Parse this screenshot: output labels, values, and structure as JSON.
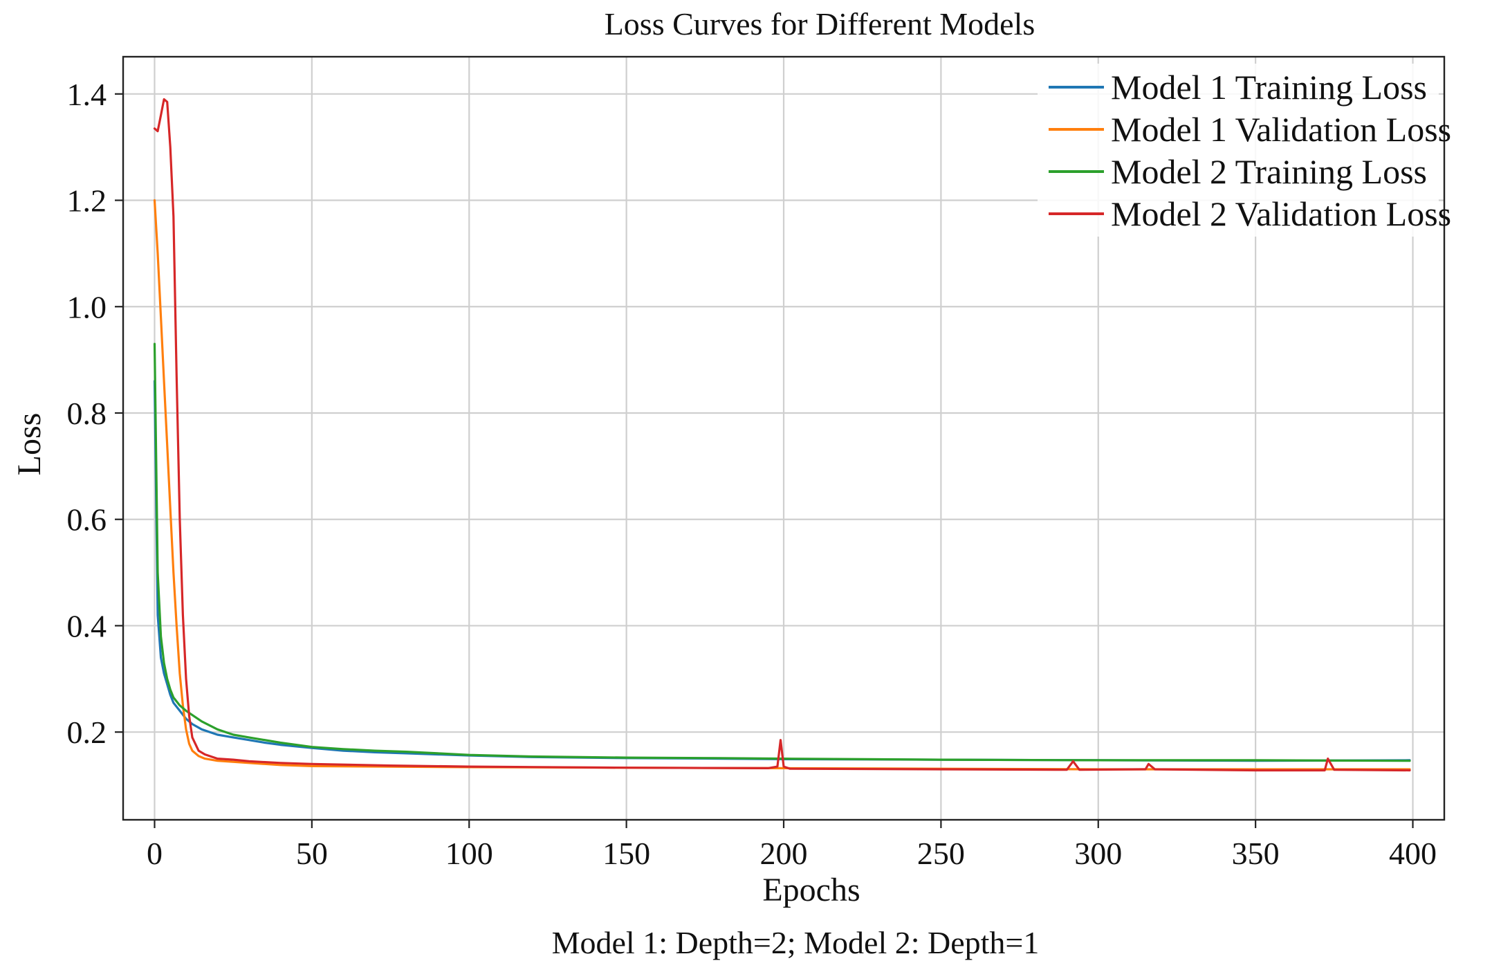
{
  "chart_data": {
    "type": "line",
    "title": "Loss Curves for Different Models",
    "xlabel": "Epochs",
    "ylabel": "Loss",
    "caption": "Model 1: Depth=2; Model 2: Depth=1",
    "xlim": [
      -10,
      410
    ],
    "ylim": [
      0.035,
      1.47
    ],
    "xticks": [
      0,
      50,
      100,
      150,
      200,
      250,
      300,
      350,
      400
    ],
    "yticks": [
      0.2,
      0.4,
      0.6,
      0.8,
      1.0,
      1.2,
      1.4
    ],
    "xtick_labels": [
      "0",
      "50",
      "100",
      "150",
      "200",
      "250",
      "300",
      "350",
      "400"
    ],
    "ytick_labels": [
      "0.2",
      "0.4",
      "0.6",
      "0.8",
      "1.0",
      "1.2",
      "1.4"
    ],
    "grid": true,
    "legend_position": "top-right",
    "series": [
      {
        "name": "Model 1 Training Loss",
        "color": "#1f77b4",
        "points": [
          [
            0,
            0.86
          ],
          [
            1,
            0.42
          ],
          [
            2,
            0.34
          ],
          [
            3,
            0.31
          ],
          [
            4,
            0.29
          ],
          [
            5,
            0.27
          ],
          [
            6,
            0.255
          ],
          [
            8,
            0.24
          ],
          [
            10,
            0.225
          ],
          [
            12,
            0.215
          ],
          [
            15,
            0.205
          ],
          [
            20,
            0.195
          ],
          [
            25,
            0.19
          ],
          [
            30,
            0.185
          ],
          [
            35,
            0.18
          ],
          [
            40,
            0.176
          ],
          [
            50,
            0.17
          ],
          [
            60,
            0.165
          ],
          [
            70,
            0.162
          ],
          [
            80,
            0.16
          ],
          [
            90,
            0.158
          ],
          [
            100,
            0.156
          ],
          [
            120,
            0.153
          ],
          [
            150,
            0.151
          ],
          [
            180,
            0.15
          ],
          [
            200,
            0.149
          ],
          [
            250,
            0.148
          ],
          [
            300,
            0.147
          ],
          [
            350,
            0.146
          ],
          [
            399,
            0.147
          ]
        ]
      },
      {
        "name": "Model 1 Validation Loss",
        "color": "#ff7f0e",
        "points": [
          [
            0,
            1.2
          ],
          [
            1,
            1.1
          ],
          [
            2,
            0.98
          ],
          [
            3,
            0.86
          ],
          [
            4,
            0.74
          ],
          [
            5,
            0.62
          ],
          [
            6,
            0.5
          ],
          [
            7,
            0.4
          ],
          [
            8,
            0.31
          ],
          [
            9,
            0.25
          ],
          [
            10,
            0.205
          ],
          [
            11,
            0.178
          ],
          [
            12,
            0.165
          ],
          [
            14,
            0.155
          ],
          [
            16,
            0.15
          ],
          [
            20,
            0.146
          ],
          [
            30,
            0.142
          ],
          [
            40,
            0.138
          ],
          [
            50,
            0.136
          ],
          [
            75,
            0.135
          ],
          [
            100,
            0.134
          ],
          [
            150,
            0.133
          ],
          [
            200,
            0.132
          ],
          [
            250,
            0.131
          ],
          [
            300,
            0.13
          ],
          [
            350,
            0.13
          ],
          [
            399,
            0.13
          ]
        ]
      },
      {
        "name": "Model 2 Training Loss",
        "color": "#2ca02c",
        "points": [
          [
            0,
            0.93
          ],
          [
            1,
            0.5
          ],
          [
            2,
            0.38
          ],
          [
            3,
            0.33
          ],
          [
            4,
            0.3
          ],
          [
            5,
            0.28
          ],
          [
            6,
            0.265
          ],
          [
            8,
            0.25
          ],
          [
            10,
            0.24
          ],
          [
            12,
            0.232
          ],
          [
            15,
            0.22
          ],
          [
            20,
            0.205
          ],
          [
            25,
            0.195
          ],
          [
            30,
            0.19
          ],
          [
            40,
            0.18
          ],
          [
            50,
            0.172
          ],
          [
            60,
            0.168
          ],
          [
            70,
            0.165
          ],
          [
            80,
            0.163
          ],
          [
            90,
            0.16
          ],
          [
            100,
            0.157
          ],
          [
            120,
            0.154
          ],
          [
            150,
            0.152
          ],
          [
            180,
            0.151
          ],
          [
            200,
            0.15
          ],
          [
            250,
            0.148
          ],
          [
            300,
            0.147
          ],
          [
            350,
            0.147
          ],
          [
            399,
            0.146
          ]
        ]
      },
      {
        "name": "Model 2 Validation Loss",
        "color": "#d62728",
        "points": [
          [
            0,
            1.335
          ],
          [
            1,
            1.33
          ],
          [
            2,
            1.36
          ],
          [
            3,
            1.39
          ],
          [
            4,
            1.385
          ],
          [
            5,
            1.3
          ],
          [
            6,
            1.17
          ],
          [
            7,
            0.87
          ],
          [
            8,
            0.6
          ],
          [
            9,
            0.42
          ],
          [
            10,
            0.3
          ],
          [
            11,
            0.23
          ],
          [
            12,
            0.19
          ],
          [
            14,
            0.165
          ],
          [
            16,
            0.158
          ],
          [
            20,
            0.15
          ],
          [
            25,
            0.148
          ],
          [
            30,
            0.145
          ],
          [
            40,
            0.142
          ],
          [
            50,
            0.14
          ],
          [
            75,
            0.137
          ],
          [
            100,
            0.135
          ],
          [
            150,
            0.133
          ],
          [
            195,
            0.132
          ],
          [
            198,
            0.135
          ],
          [
            199,
            0.185
          ],
          [
            200,
            0.135
          ],
          [
            202,
            0.131
          ],
          [
            250,
            0.13
          ],
          [
            290,
            0.129
          ],
          [
            292,
            0.145
          ],
          [
            294,
            0.129
          ],
          [
            315,
            0.13
          ],
          [
            316,
            0.14
          ],
          [
            318,
            0.13
          ],
          [
            350,
            0.128
          ],
          [
            372,
            0.128
          ],
          [
            373,
            0.15
          ],
          [
            375,
            0.129
          ],
          [
            399,
            0.128
          ]
        ]
      }
    ]
  }
}
